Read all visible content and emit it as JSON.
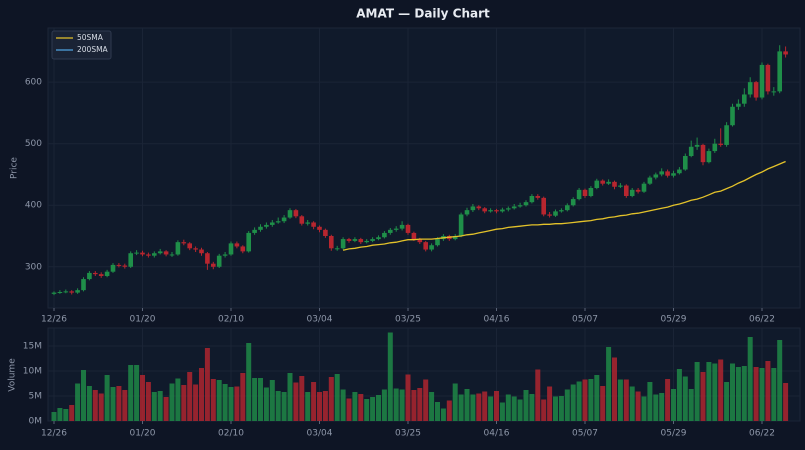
{
  "chart_data": {
    "type": "candlestick",
    "title": "AMAT — Daily Chart",
    "ylabel": "Price",
    "categories": [
      "12/26",
      null,
      null,
      null,
      null,
      null,
      null,
      null,
      null,
      null,
      null,
      null,
      null,
      null,
      null,
      "01/20",
      null,
      null,
      null,
      null,
      null,
      null,
      null,
      null,
      null,
      null,
      null,
      null,
      null,
      null,
      "02/10",
      null,
      null,
      null,
      null,
      null,
      null,
      null,
      null,
      null,
      null,
      null,
      null,
      null,
      null,
      "03/04",
      null,
      null,
      null,
      null,
      null,
      null,
      null,
      null,
      null,
      null,
      null,
      null,
      null,
      null,
      "03/25",
      null,
      null,
      null,
      null,
      null,
      null,
      null,
      null,
      null,
      null,
      null,
      null,
      null,
      null,
      "04/16",
      null,
      null,
      null,
      null,
      null,
      null,
      null,
      null,
      null,
      null,
      null,
      null,
      null,
      null,
      "05/07",
      null,
      null,
      null,
      null,
      null,
      null,
      null,
      null,
      null,
      null,
      null,
      null,
      null,
      null,
      "05/29",
      null,
      null,
      null,
      null,
      null,
      null,
      null,
      null,
      null,
      null,
      null,
      null,
      null,
      null,
      "06/22",
      null,
      null,
      null,
      null
    ],
    "open": [
      256,
      258,
      259,
      260,
      258,
      262,
      280,
      290,
      288,
      285,
      292,
      303,
      302,
      300,
      322,
      323,
      320,
      318,
      322,
      325,
      320,
      320,
      340,
      338,
      330,
      328,
      322,
      305,
      300,
      318,
      320,
      338,
      333,
      325,
      355,
      360,
      365,
      368,
      372,
      374,
      380,
      392,
      382,
      370,
      372,
      365,
      360,
      350,
      330,
      330,
      345,
      342,
      345,
      340,
      342,
      345,
      348,
      355,
      360,
      362,
      368,
      355,
      345,
      340,
      328,
      335,
      345,
      350,
      345,
      350,
      385,
      392,
      398,
      395,
      390,
      392,
      390,
      393,
      395,
      398,
      400,
      405,
      415,
      412,
      385,
      383,
      390,
      392,
      400,
      410,
      425,
      415,
      428,
      440,
      435,
      438,
      430,
      432,
      415,
      425,
      422,
      435,
      445,
      450,
      455,
      448,
      452,
      458,
      480,
      495,
      498,
      470,
      488,
      500,
      498,
      530,
      560,
      565,
      580,
      600,
      575,
      628,
      585,
      585,
      650
    ],
    "high": [
      260,
      262,
      263,
      262,
      265,
      283,
      293,
      293,
      291,
      295,
      306,
      306,
      305,
      325,
      327,
      326,
      323,
      325,
      329,
      327,
      324,
      343,
      344,
      340,
      333,
      331,
      324,
      308,
      321,
      324,
      341,
      341,
      335,
      358,
      364,
      369,
      372,
      376,
      380,
      384,
      395,
      394,
      384,
      376,
      374,
      367,
      362,
      352,
      334,
      348,
      347,
      348,
      347,
      345,
      348,
      351,
      358,
      363,
      366,
      374,
      370,
      357,
      347,
      342,
      338,
      348,
      353,
      352,
      353,
      388,
      396,
      402,
      400,
      397,
      395,
      394,
      396,
      398,
      402,
      404,
      408,
      418,
      418,
      414,
      389,
      393,
      395,
      403,
      413,
      428,
      427,
      431,
      443,
      442,
      442,
      440,
      436,
      434,
      428,
      428,
      438,
      448,
      453,
      460,
      458,
      456,
      462,
      484,
      505,
      510,
      500,
      492,
      508,
      525,
      535,
      565,
      572,
      590,
      608,
      602,
      632,
      630,
      592,
      660,
      658
    ],
    "low": [
      254,
      256,
      257,
      255,
      256,
      260,
      278,
      285,
      282,
      283,
      290,
      299,
      297,
      298,
      319,
      317,
      315,
      315,
      320,
      317,
      316,
      318,
      335,
      327,
      324,
      318,
      295,
      296,
      298,
      315,
      318,
      330,
      322,
      323,
      352,
      357,
      362,
      365,
      370,
      371,
      378,
      379,
      367,
      367,
      361,
      356,
      347,
      326,
      326,
      328,
      339,
      340,
      337,
      338,
      340,
      343,
      346,
      352,
      357,
      359,
      352,
      342,
      337,
      325,
      325,
      333,
      342,
      342,
      343,
      348,
      382,
      389,
      392,
      387,
      388,
      387,
      388,
      390,
      393,
      396,
      398,
      403,
      409,
      382,
      380,
      381,
      388,
      390,
      398,
      408,
      412,
      413,
      426,
      432,
      433,
      426,
      428,
      412,
      413,
      419,
      420,
      433,
      442,
      447,
      445,
      445,
      450,
      456,
      478,
      490,
      465,
      468,
      485,
      495,
      495,
      528,
      555,
      560,
      575,
      570,
      572,
      580,
      578,
      582,
      640
    ],
    "close": [
      258,
      259,
      260,
      258,
      262,
      280,
      290,
      288,
      285,
      292,
      303,
      302,
      300,
      322,
      323,
      320,
      318,
      322,
      325,
      320,
      320,
      340,
      338,
      330,
      328,
      322,
      305,
      300,
      318,
      320,
      338,
      333,
      325,
      355,
      360,
      365,
      368,
      372,
      374,
      380,
      392,
      382,
      370,
      372,
      365,
      360,
      350,
      330,
      330,
      345,
      342,
      345,
      340,
      342,
      345,
      348,
      355,
      360,
      362,
      368,
      355,
      345,
      340,
      328,
      335,
      345,
      350,
      345,
      350,
      385,
      392,
      398,
      395,
      390,
      392,
      390,
      393,
      395,
      398,
      400,
      405,
      415,
      412,
      385,
      383,
      390,
      392,
      400,
      410,
      425,
      415,
      428,
      440,
      435,
      438,
      430,
      432,
      415,
      425,
      422,
      435,
      445,
      450,
      455,
      448,
      452,
      458,
      480,
      495,
      498,
      470,
      488,
      500,
      498,
      530,
      560,
      565,
      580,
      600,
      575,
      628,
      585,
      585,
      650,
      645
    ],
    "up_color": "#1f8f49",
    "down_color": "#b8262f",
    "series": [
      {
        "name": "50SMA",
        "color": "#e3c22a",
        "values": [
          null,
          null,
          null,
          null,
          null,
          null,
          null,
          null,
          null,
          null,
          null,
          null,
          null,
          null,
          null,
          null,
          null,
          null,
          null,
          null,
          null,
          null,
          null,
          null,
          null,
          null,
          null,
          null,
          null,
          null,
          null,
          null,
          null,
          null,
          null,
          null,
          null,
          null,
          null,
          null,
          null,
          null,
          null,
          null,
          null,
          null,
          null,
          null,
          null,
          327,
          329,
          330,
          332,
          333,
          335,
          336,
          337,
          339,
          340,
          342,
          344,
          344,
          345,
          345,
          345,
          346,
          347,
          348,
          349,
          350,
          352,
          353,
          355,
          357,
          359,
          361,
          362,
          364,
          365,
          366,
          367,
          368,
          368,
          369,
          369,
          370,
          370,
          371,
          372,
          373,
          374,
          375,
          377,
          378,
          380,
          381,
          383,
          384,
          386,
          387,
          389,
          391,
          393,
          395,
          397,
          400,
          402,
          405,
          408,
          410,
          413,
          417,
          421,
          423,
          427,
          431,
          436,
          440,
          445,
          450,
          454,
          459,
          463,
          467,
          471
        ]
      },
      {
        "name": "200SMA",
        "color": "#4fa3e0",
        "values": [
          null,
          null,
          null,
          null,
          null,
          null,
          null,
          null,
          null,
          null,
          null,
          null,
          null,
          null,
          null,
          null,
          null,
          null,
          null,
          null,
          null,
          null,
          null,
          null,
          null,
          null,
          null,
          null,
          null,
          null,
          null,
          null,
          null,
          null,
          null,
          null,
          null,
          null,
          null,
          null,
          null,
          null,
          null,
          null,
          null,
          null,
          null,
          null,
          null,
          null,
          null,
          null,
          null,
          null,
          null,
          null,
          null,
          null,
          null,
          null,
          null,
          null,
          null,
          null,
          null,
          null,
          null,
          null,
          null,
          null,
          null,
          null,
          null,
          null,
          null,
          null,
          null,
          null,
          null,
          null,
          null,
          null,
          null,
          null,
          null,
          null,
          null,
          null,
          null,
          null,
          null,
          null,
          null,
          null,
          null,
          null,
          null,
          null,
          null,
          null,
          null,
          null,
          null,
          null,
          null,
          null,
          null,
          null,
          null,
          null,
          null,
          null,
          null,
          null,
          null,
          null,
          null,
          null,
          null,
          null,
          null,
          null,
          null,
          null,
          null
        ]
      }
    ],
    "ylim": [
      233,
      688
    ],
    "yticks": [
      300,
      400,
      500,
      600
    ],
    "grid": true,
    "legend": "upper-left",
    "volume": {
      "ylabel": "Volume",
      "ylim": [
        0,
        18.6
      ],
      "yticks": [
        {
          "value": 0,
          "label": "0M"
        },
        {
          "value": 5,
          "label": "5M"
        },
        {
          "value": 10,
          "label": "10M"
        },
        {
          "value": 15,
          "label": "15M"
        }
      ],
      "values": [
        1.8,
        2.6,
        2.4,
        3.2,
        7.5,
        10.2,
        7,
        6.2,
        5.5,
        9.2,
        6.8,
        7,
        6.2,
        11.2,
        11.2,
        9.2,
        7.8,
        5.8,
        6,
        4.8,
        7.5,
        8.5,
        7.2,
        9.8,
        7.3,
        10.6,
        14.6,
        8.4,
        8.2,
        7.4,
        6.8,
        6.9,
        9.6,
        15.6,
        8.6,
        8.6,
        6.7,
        8.2,
        6,
        5.8,
        9.6,
        7.7,
        9,
        5.8,
        7.8,
        5.8,
        6,
        8.8,
        9.4,
        6.3,
        4.5,
        5.8,
        5.4,
        4.4,
        4.8,
        5.2,
        6.3,
        17.7,
        6.5,
        6.3,
        9.3,
        6.2,
        6.6,
        8.3,
        5.8,
        3.8,
        2.5,
        4.1,
        7.5,
        5.3,
        6.4,
        5.3,
        5.5,
        5.9,
        4.9,
        6,
        3.7,
        5.3,
        4.9,
        4.3,
        6.2,
        5.4,
        10.3,
        4.3,
        6.9,
        4.9,
        5,
        6.3,
        7.3,
        7.9,
        8.3,
        8.4,
        9.2,
        7,
        14.8,
        12.7,
        8.3,
        8.3,
        6.9,
        5.9,
        4.9,
        7.8,
        5.3,
        5.6,
        8.4,
        6.4,
        10.4,
        8.9,
        6.4,
        11.8,
        9.8,
        11.8,
        11.5,
        12.3,
        7.8,
        11.5,
        10.8,
        11,
        16.8,
        10.8,
        10.6,
        12,
        10.6,
        16.2,
        7.6
      ]
    }
  }
}
